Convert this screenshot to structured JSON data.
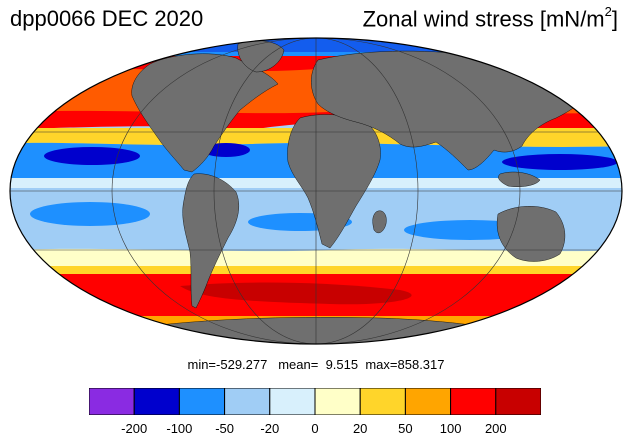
{
  "header": {
    "left_title": "dpp0066 DEC 2020",
    "right_title_main": "Zonal wind stress [mN/m",
    "right_title_sup": "2",
    "right_title_end": "]"
  },
  "stats": {
    "min_label": "min=",
    "min_value": "-529.277",
    "mean_label": "mean=",
    "mean_value": "9.515",
    "max_label": "max=",
    "max_value": "858.317"
  },
  "colorbar": {
    "colors": [
      "#8a2be2",
      "#0000cd",
      "#1e90ff",
      "#a0cdf5",
      "#d8f0fc",
      "#ffffc8",
      "#ffd52a",
      "#ffa500",
      "#ff0000",
      "#c80000"
    ],
    "tick_labels": [
      "-200",
      "-100",
      "-50",
      "-20",
      "0",
      "20",
      "50",
      "100",
      "200"
    ]
  },
  "map": {
    "projection": "mollweide",
    "land_color": "#6f6f6f",
    "ocean_fill_color": "#a8d2f7",
    "graticule": "on"
  }
}
